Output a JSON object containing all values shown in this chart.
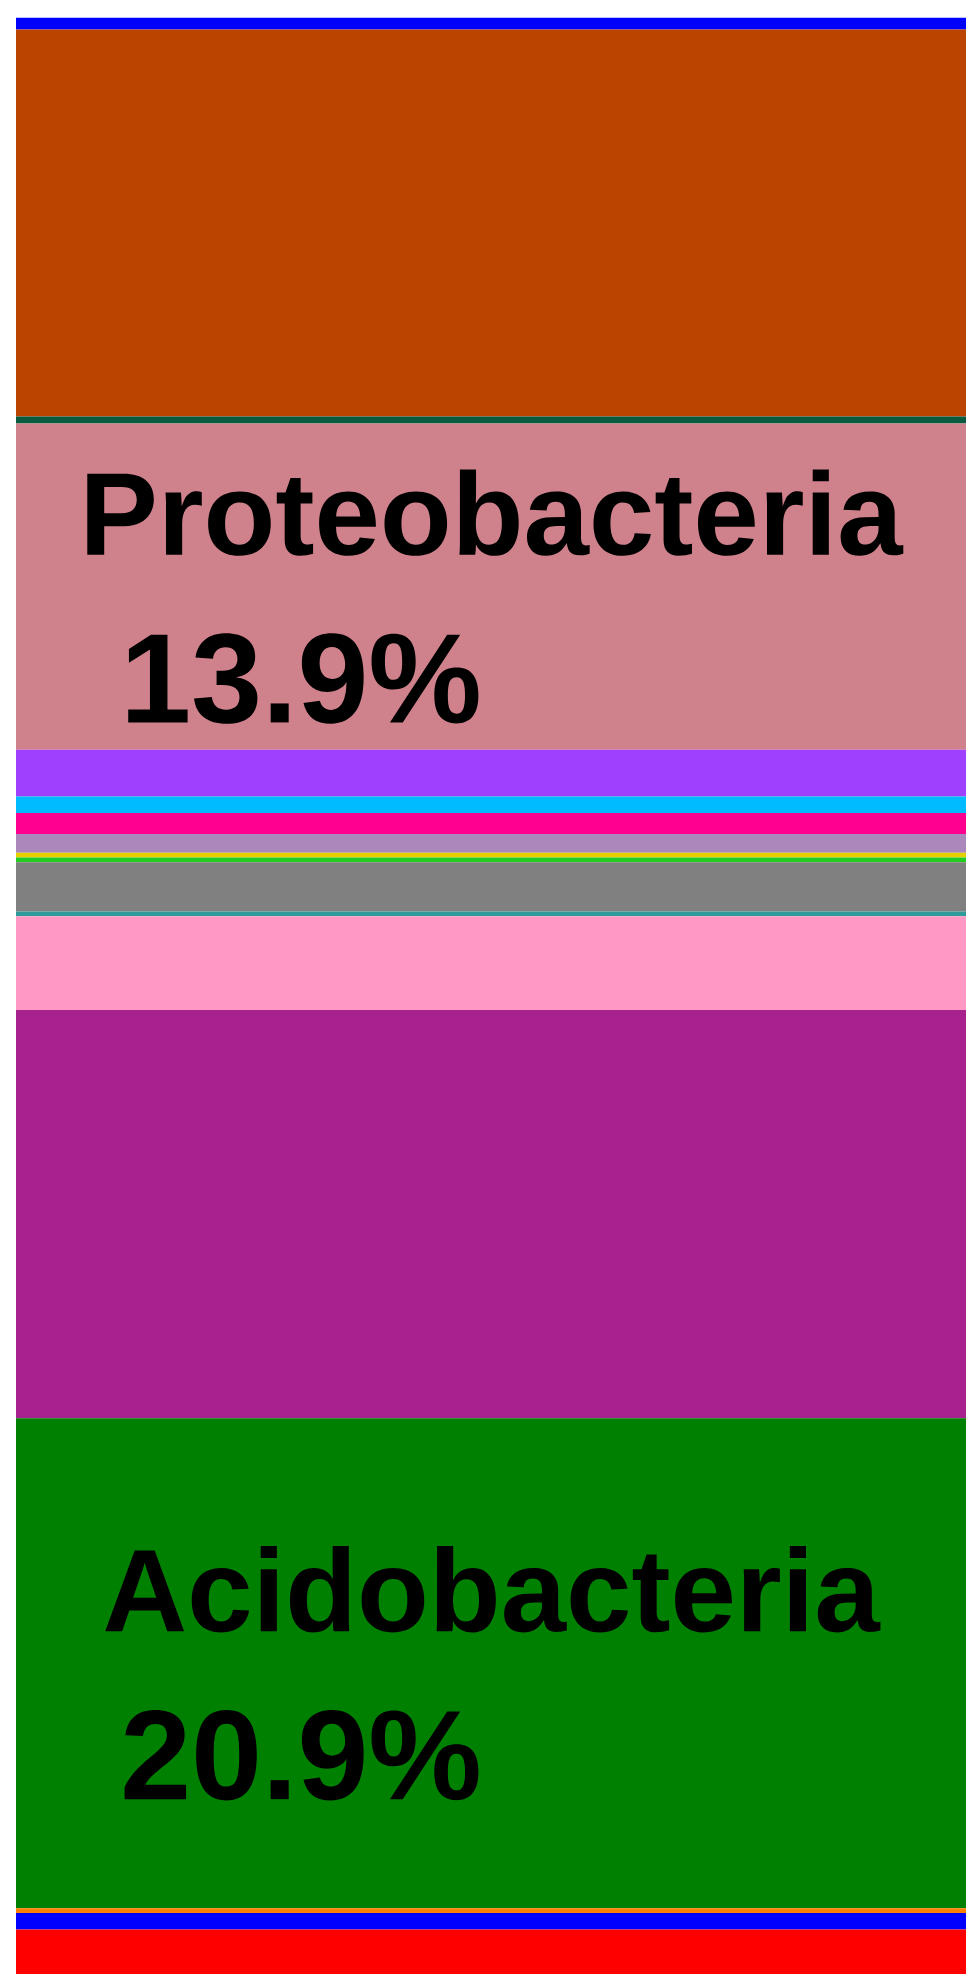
{
  "chart_data": {
    "type": "bar",
    "stacked": true,
    "categories": [
      null
    ],
    "series": [
      {
        "color": "#ff0000",
        "values": [
          1.9
        ]
      },
      {
        "color": "#0000ff",
        "values": [
          0.7
        ]
      },
      {
        "color": "#ff8000",
        "values": [
          0.2
        ]
      },
      {
        "name": "Acidobacteria",
        "color": "#008000",
        "values": [
          20.9
        ],
        "value_labels": [
          "20.9%"
        ]
      },
      {
        "color": "#a8228e",
        "values": [
          17.4
        ]
      },
      {
        "color": "#ff99c4",
        "values": [
          4.0
        ]
      },
      {
        "color": "#2e9a9a",
        "values": [
          0.2
        ]
      },
      {
        "color": "#808080",
        "values": [
          2.1
        ]
      },
      {
        "color": "#22cc22",
        "values": [
          0.2
        ]
      },
      {
        "color": "#e8d000",
        "values": [
          0.2
        ]
      },
      {
        "color": "#aa88bb",
        "values": [
          0.8
        ]
      },
      {
        "color": "#ff0090",
        "values": [
          0.9
        ]
      },
      {
        "color": "#00bbff",
        "values": [
          0.7
        ]
      },
      {
        "color": "#a040ff",
        "values": [
          2.0
        ]
      },
      {
        "name": "Proteobacteria",
        "color": "#d0828c",
        "values": [
          13.9
        ],
        "value_labels": [
          "13.9%"
        ]
      },
      {
        "color": "#0a5a40",
        "values": [
          0.3
        ]
      },
      {
        "color": "#bb4400",
        "values": [
          16.5
        ]
      },
      {
        "color": "#0000ff",
        "values": [
          0.5
        ]
      }
    ]
  }
}
